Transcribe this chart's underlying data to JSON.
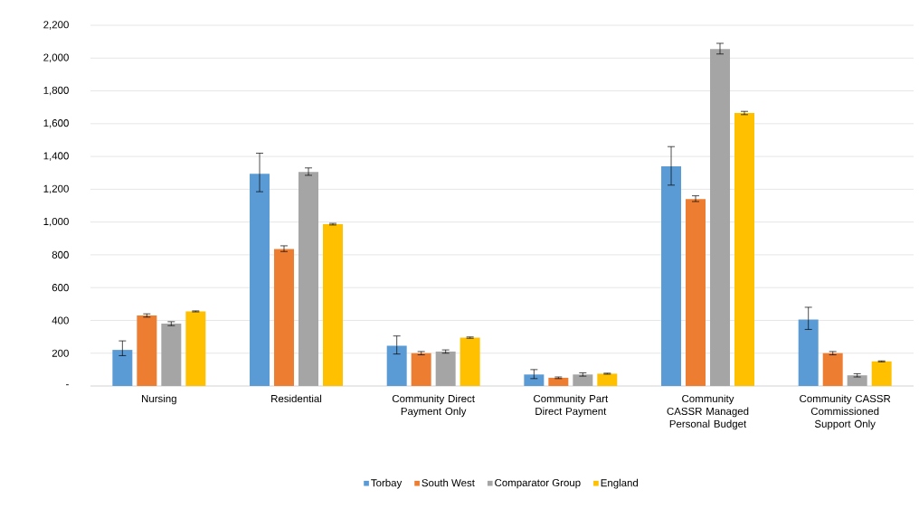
{
  "chart_data": {
    "type": "bar",
    "categories": [
      "Nursing",
      "Residential",
      "Community Direct Payment Only",
      "Community Part Direct Payment",
      "Community CASSR Managed Personal Budget",
      "Community CASSR Commissioned Support Only"
    ],
    "series": [
      {
        "name": "Torbay",
        "color": "#5b9bd5",
        "values": [
          220,
          1295,
          245,
          70,
          1340,
          405
        ],
        "errors": [
          [
            185,
            275
          ],
          [
            1185,
            1420
          ],
          [
            195,
            305
          ],
          [
            45,
            100
          ],
          [
            1225,
            1460
          ],
          [
            345,
            480
          ]
        ]
      },
      {
        "name": "South West",
        "color": "#ed7d31",
        "values": [
          430,
          835,
          200,
          50,
          1140,
          200
        ],
        "errors": [
          [
            420,
            440
          ],
          [
            820,
            855
          ],
          [
            190,
            210
          ],
          [
            45,
            55
          ],
          [
            1125,
            1160
          ],
          [
            190,
            210
          ]
        ]
      },
      {
        "name": "Comparator Group",
        "color": "#a5a5a5",
        "values": [
          380,
          1305,
          210,
          70,
          2055,
          65
        ],
        "errors": [
          [
            368,
            392
          ],
          [
            1285,
            1330
          ],
          [
            200,
            220
          ],
          [
            60,
            80
          ],
          [
            2025,
            2090
          ],
          [
            55,
            75
          ]
        ]
      },
      {
        "name": "England",
        "color": "#ffc000",
        "values": [
          455,
          987,
          295,
          75,
          1665,
          150
        ],
        "errors": [
          [
            452,
            458
          ],
          [
            982,
            992
          ],
          [
            291,
            299
          ],
          [
            72,
            78
          ],
          [
            1655,
            1675
          ],
          [
            147,
            153
          ]
        ]
      }
    ],
    "ylim": [
      0,
      2200
    ],
    "yticks": [
      {
        "value": 0,
        "label": "-"
      },
      {
        "value": 200,
        "label": "200"
      },
      {
        "value": 400,
        "label": "400"
      },
      {
        "value": 600,
        "label": "600"
      },
      {
        "value": 800,
        "label": "800"
      },
      {
        "value": 1000,
        "label": "1,000"
      },
      {
        "value": 1200,
        "label": "1,200"
      },
      {
        "value": 1400,
        "label": "1,400"
      },
      {
        "value": 1600,
        "label": "1,600"
      },
      {
        "value": 1800,
        "label": "1,800"
      },
      {
        "value": 2000,
        "label": "2,000"
      },
      {
        "value": 2200,
        "label": "2,200"
      }
    ],
    "grid": "y",
    "legend": "bottom"
  }
}
